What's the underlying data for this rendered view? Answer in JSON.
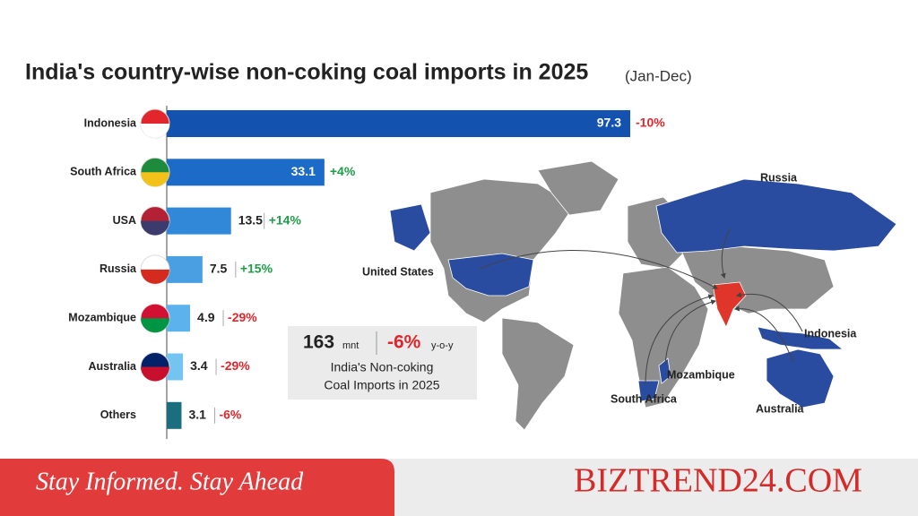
{
  "chart_data": {
    "type": "bar",
    "orientation": "horizontal",
    "title": "India's country-wise non-coking coal imports in 2025",
    "subtitle": "(Jan-Dec)",
    "categories": [
      "Indonesia",
      "South Africa",
      "USA",
      "Russia",
      "Mozambique",
      "Australia",
      "Others"
    ],
    "values": [
      97.3,
      33.1,
      13.5,
      7.5,
      4.9,
      3.4,
      3.1
    ],
    "changes": [
      "-10%",
      "+4%",
      "+14%",
      "+15%",
      "-29%",
      "-29%",
      "-6%"
    ],
    "colors": [
      "#1452b0",
      "#1d6bc9",
      "#3188d8",
      "#4a9fe3",
      "#5cb2ec",
      "#74c4f2",
      "#1b6d80"
    ]
  },
  "summary": {
    "total": 163,
    "unit": "mnt",
    "change": "-6%",
    "change_unit": "y-o-y",
    "label": [
      "India's Non-coking",
      "Coal Imports in 2025"
    ]
  },
  "map_labels": [
    "Russia",
    "United States",
    "Indonesia",
    "Mozambique",
    "South Africa",
    "Australia"
  ],
  "footer": {
    "tagline": "Stay Informed. Stay Ahead",
    "brand": "BIZTREND24.COM"
  }
}
